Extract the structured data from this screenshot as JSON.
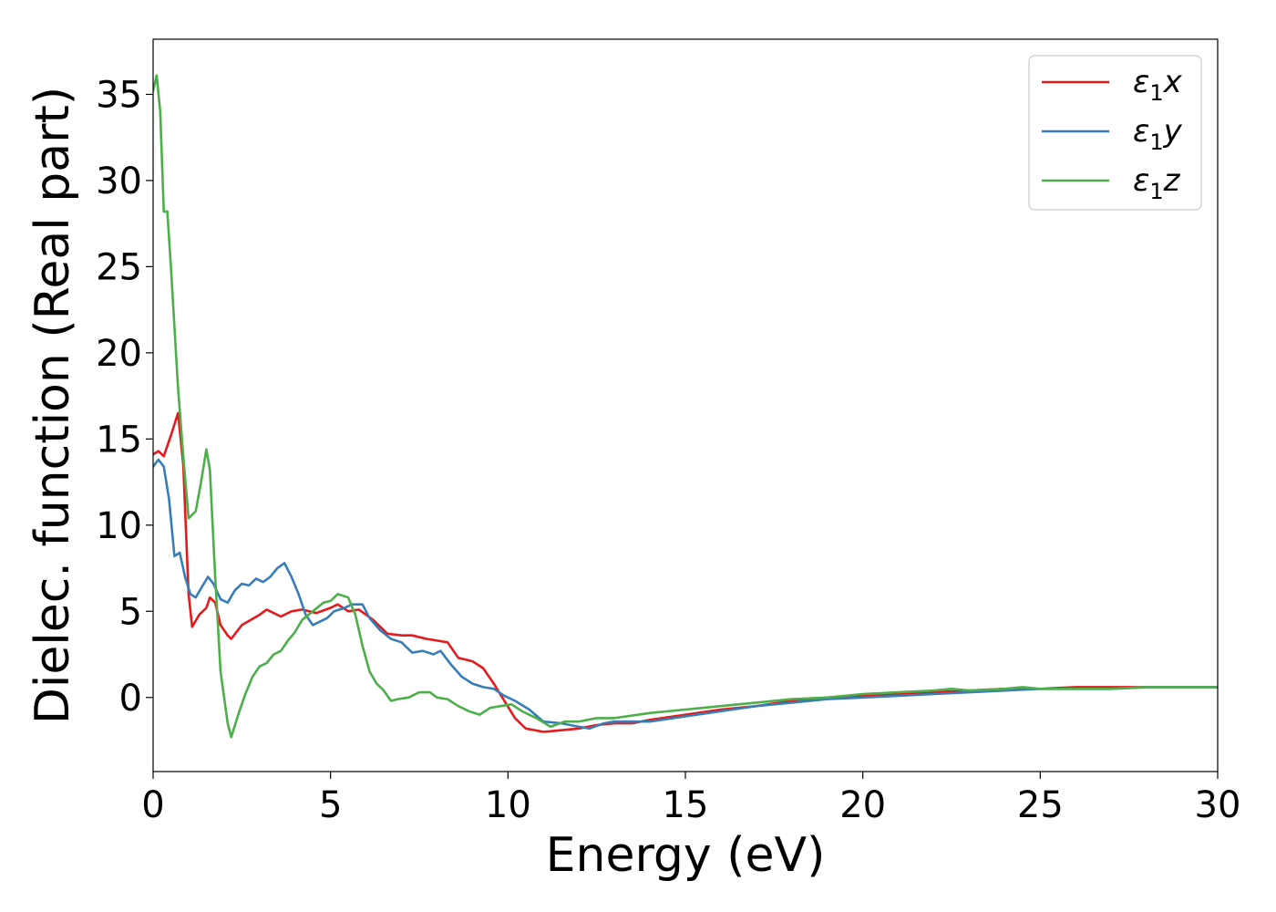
{
  "chart_data": {
    "type": "line",
    "xlabel": "Energy (eV)",
    "ylabel": "Dielec. function (Real part)",
    "xlim": [
      0,
      30
    ],
    "ylim": [
      -4.3,
      38.2
    ],
    "xticks": [
      0,
      5,
      10,
      15,
      20,
      25,
      30
    ],
    "yticks": [
      0,
      5,
      10,
      15,
      20,
      25,
      30,
      35
    ],
    "grid": false,
    "legend_position": "top-right",
    "series": [
      {
        "name": "ε₁x",
        "legend_base": "ε",
        "legend_sub": "1",
        "legend_var": "x",
        "color": "#e41a1c",
        "points": [
          [
            0,
            14.1
          ],
          [
            0.15,
            14.3
          ],
          [
            0.3,
            14.0
          ],
          [
            0.5,
            15.2
          ],
          [
            0.7,
            16.5
          ],
          [
            0.85,
            13.5
          ],
          [
            1.0,
            6.0
          ],
          [
            1.1,
            4.1
          ],
          [
            1.3,
            4.8
          ],
          [
            1.5,
            5.2
          ],
          [
            1.6,
            5.8
          ],
          [
            1.75,
            5.5
          ],
          [
            1.9,
            4.2
          ],
          [
            2.1,
            3.6
          ],
          [
            2.2,
            3.4
          ],
          [
            2.5,
            4.2
          ],
          [
            3.0,
            4.8
          ],
          [
            3.2,
            5.1
          ],
          [
            3.6,
            4.7
          ],
          [
            3.9,
            5.0
          ],
          [
            4.2,
            5.1
          ],
          [
            4.6,
            4.9
          ],
          [
            5.0,
            5.2
          ],
          [
            5.2,
            5.4
          ],
          [
            5.5,
            5.0
          ],
          [
            5.8,
            5.1
          ],
          [
            6.2,
            4.5
          ],
          [
            6.6,
            3.7
          ],
          [
            7.0,
            3.6
          ],
          [
            7.3,
            3.6
          ],
          [
            7.7,
            3.4
          ],
          [
            8.0,
            3.3
          ],
          [
            8.3,
            3.2
          ],
          [
            8.6,
            2.3
          ],
          [
            9.0,
            2.1
          ],
          [
            9.3,
            1.7
          ],
          [
            9.6,
            0.8
          ],
          [
            9.9,
            -0.2
          ],
          [
            10.2,
            -1.2
          ],
          [
            10.5,
            -1.8
          ],
          [
            11.0,
            -2.0
          ],
          [
            11.5,
            -1.9
          ],
          [
            12.0,
            -1.8
          ],
          [
            12.5,
            -1.6
          ],
          [
            13.0,
            -1.5
          ],
          [
            13.5,
            -1.5
          ],
          [
            14.0,
            -1.3
          ],
          [
            15.0,
            -1.0
          ],
          [
            16.0,
            -0.7
          ],
          [
            17.0,
            -0.5
          ],
          [
            18.0,
            -0.2
          ],
          [
            19.0,
            0.0
          ],
          [
            20.0,
            0.1
          ],
          [
            21.0,
            0.2
          ],
          [
            22.0,
            0.3
          ],
          [
            23.0,
            0.4
          ],
          [
            24.0,
            0.5
          ],
          [
            25.0,
            0.5
          ],
          [
            26.0,
            0.6
          ],
          [
            27.0,
            0.6
          ],
          [
            28.0,
            0.6
          ],
          [
            29.0,
            0.6
          ],
          [
            30.0,
            0.6
          ]
        ]
      },
      {
        "name": "ε₁y",
        "legend_base": "ε",
        "legend_sub": "1",
        "legend_var": "y",
        "color": "#377eb8",
        "points": [
          [
            0,
            13.4
          ],
          [
            0.15,
            13.8
          ],
          [
            0.3,
            13.4
          ],
          [
            0.45,
            11.5
          ],
          [
            0.6,
            8.2
          ],
          [
            0.75,
            8.4
          ],
          [
            0.9,
            7.0
          ],
          [
            1.05,
            6.0
          ],
          [
            1.2,
            5.8
          ],
          [
            1.4,
            6.5
          ],
          [
            1.55,
            7.0
          ],
          [
            1.7,
            6.6
          ],
          [
            1.9,
            5.7
          ],
          [
            2.1,
            5.5
          ],
          [
            2.3,
            6.2
          ],
          [
            2.5,
            6.6
          ],
          [
            2.7,
            6.5
          ],
          [
            2.9,
            6.9
          ],
          [
            3.1,
            6.7
          ],
          [
            3.3,
            7.0
          ],
          [
            3.5,
            7.5
          ],
          [
            3.7,
            7.8
          ],
          [
            3.9,
            7.0
          ],
          [
            4.1,
            6.0
          ],
          [
            4.3,
            4.8
          ],
          [
            4.5,
            4.2
          ],
          [
            4.7,
            4.4
          ],
          [
            4.9,
            4.6
          ],
          [
            5.1,
            5.0
          ],
          [
            5.4,
            5.2
          ],
          [
            5.6,
            5.4
          ],
          [
            5.9,
            5.4
          ],
          [
            6.1,
            4.6
          ],
          [
            6.4,
            3.9
          ],
          [
            6.7,
            3.4
          ],
          [
            7.0,
            3.2
          ],
          [
            7.3,
            2.6
          ],
          [
            7.6,
            2.7
          ],
          [
            7.9,
            2.5
          ],
          [
            8.1,
            2.7
          ],
          [
            8.4,
            1.9
          ],
          [
            8.7,
            1.2
          ],
          [
            9.0,
            0.8
          ],
          [
            9.3,
            0.6
          ],
          [
            9.6,
            0.5
          ],
          [
            9.9,
            0.1
          ],
          [
            10.2,
            -0.2
          ],
          [
            10.6,
            -0.7
          ],
          [
            11.0,
            -1.4
          ],
          [
            11.5,
            -1.5
          ],
          [
            12.0,
            -1.7
          ],
          [
            12.3,
            -1.8
          ],
          [
            12.7,
            -1.5
          ],
          [
            13.0,
            -1.4
          ],
          [
            13.5,
            -1.4
          ],
          [
            14.0,
            -1.4
          ],
          [
            15.0,
            -1.1
          ],
          [
            16.0,
            -0.8
          ],
          [
            17.0,
            -0.5
          ],
          [
            18.0,
            -0.3
          ],
          [
            19.0,
            -0.1
          ],
          [
            20.0,
            0.0
          ],
          [
            21.0,
            0.1
          ],
          [
            22.0,
            0.2
          ],
          [
            23.0,
            0.3
          ],
          [
            24.0,
            0.4
          ],
          [
            25.0,
            0.5
          ],
          [
            26.0,
            0.5
          ],
          [
            27.0,
            0.5
          ],
          [
            28.0,
            0.6
          ],
          [
            29.0,
            0.6
          ],
          [
            30.0,
            0.6
          ]
        ]
      },
      {
        "name": "ε₁z",
        "legend_base": "ε",
        "legend_sub": "1",
        "legend_var": "z",
        "color": "#4daf4a",
        "points": [
          [
            0,
            35.2
          ],
          [
            0.1,
            36.1
          ],
          [
            0.2,
            34.0
          ],
          [
            0.3,
            28.2
          ],
          [
            0.4,
            28.2
          ],
          [
            0.5,
            25.0
          ],
          [
            0.6,
            21.5
          ],
          [
            0.7,
            18.0
          ],
          [
            0.85,
            14.0
          ],
          [
            1.0,
            10.4
          ],
          [
            1.2,
            10.8
          ],
          [
            1.35,
            12.5
          ],
          [
            1.5,
            14.4
          ],
          [
            1.6,
            13.2
          ],
          [
            1.75,
            7.0
          ],
          [
            1.9,
            1.5
          ],
          [
            2.0,
            0.0
          ],
          [
            2.1,
            -1.5
          ],
          [
            2.2,
            -2.3
          ],
          [
            2.4,
            -1.0
          ],
          [
            2.6,
            0.2
          ],
          [
            2.8,
            1.2
          ],
          [
            3.0,
            1.8
          ],
          [
            3.2,
            2.0
          ],
          [
            3.4,
            2.5
          ],
          [
            3.6,
            2.7
          ],
          [
            3.8,
            3.3
          ],
          [
            4.0,
            3.8
          ],
          [
            4.2,
            4.5
          ],
          [
            4.5,
            5.0
          ],
          [
            4.8,
            5.5
          ],
          [
            5.0,
            5.6
          ],
          [
            5.2,
            6.0
          ],
          [
            5.5,
            5.8
          ],
          [
            5.7,
            4.8
          ],
          [
            5.9,
            3.0
          ],
          [
            6.1,
            1.5
          ],
          [
            6.3,
            0.8
          ],
          [
            6.5,
            0.4
          ],
          [
            6.7,
            -0.2
          ],
          [
            6.9,
            -0.1
          ],
          [
            7.2,
            0.0
          ],
          [
            7.5,
            0.3
          ],
          [
            7.8,
            0.3
          ],
          [
            8.0,
            0.0
          ],
          [
            8.3,
            -0.1
          ],
          [
            8.6,
            -0.5
          ],
          [
            8.9,
            -0.8
          ],
          [
            9.2,
            -1.0
          ],
          [
            9.5,
            -0.6
          ],
          [
            9.8,
            -0.5
          ],
          [
            10.1,
            -0.4
          ],
          [
            10.4,
            -0.8
          ],
          [
            10.8,
            -1.2
          ],
          [
            11.2,
            -1.7
          ],
          [
            11.6,
            -1.4
          ],
          [
            12.0,
            -1.4
          ],
          [
            12.5,
            -1.2
          ],
          [
            13.0,
            -1.2
          ],
          [
            14.0,
            -0.9
          ],
          [
            15.0,
            -0.7
          ],
          [
            16.0,
            -0.5
          ],
          [
            17.0,
            -0.3
          ],
          [
            18.0,
            -0.1
          ],
          [
            19.0,
            0.0
          ],
          [
            20.0,
            0.2
          ],
          [
            21.0,
            0.3
          ],
          [
            22.0,
            0.4
          ],
          [
            22.5,
            0.5
          ],
          [
            23.0,
            0.4
          ],
          [
            24.0,
            0.5
          ],
          [
            24.5,
            0.6
          ],
          [
            25.0,
            0.5
          ],
          [
            26.0,
            0.5
          ],
          [
            27.0,
            0.5
          ],
          [
            28.0,
            0.6
          ],
          [
            29.0,
            0.6
          ],
          [
            30.0,
            0.6
          ]
        ]
      }
    ]
  }
}
